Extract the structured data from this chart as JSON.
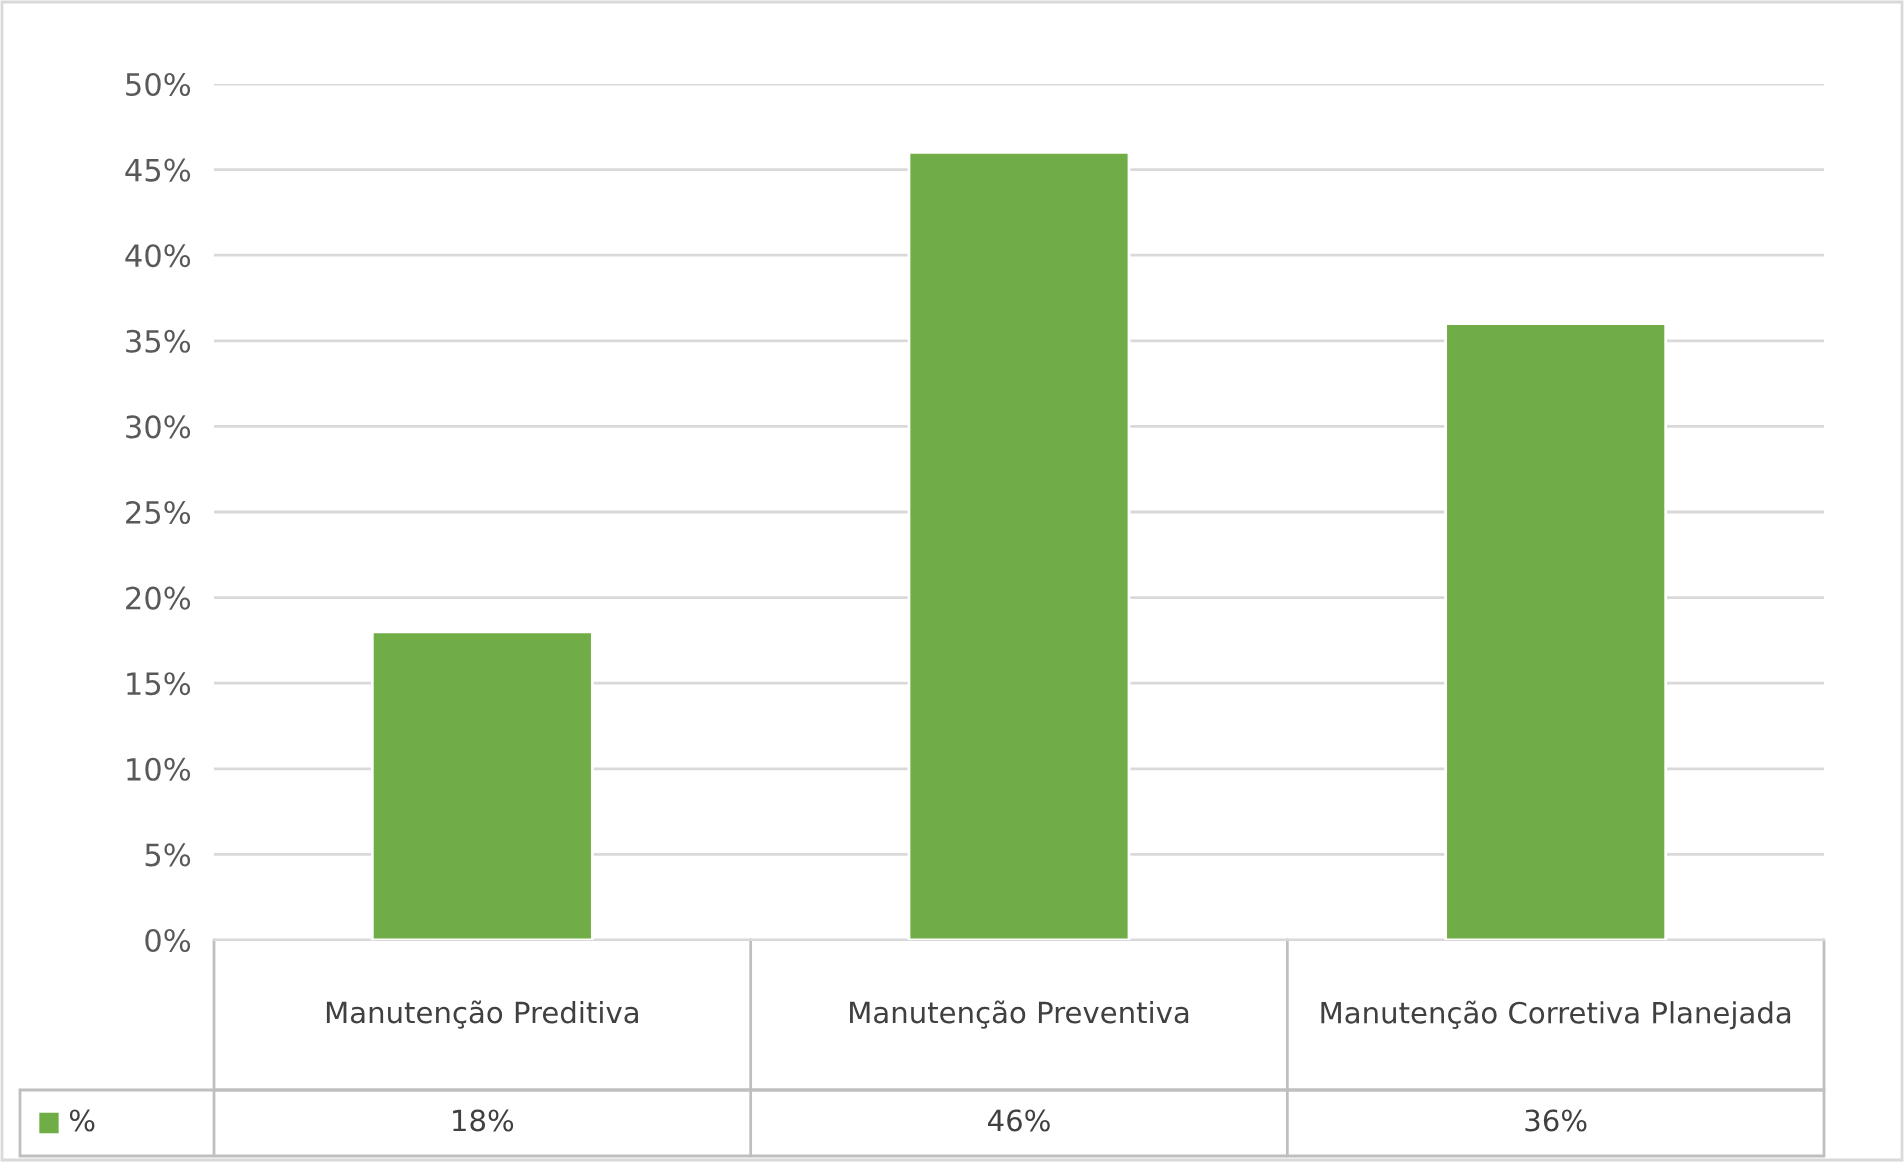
{
  "chart_data": {
    "type": "bar",
    "categories": [
      "Manutenção Preditiva",
      "Manutenção Preventiva",
      "Manutenção Corretiva Planejada"
    ],
    "series": [
      {
        "name": "%",
        "color": "#70ad47",
        "values": [
          18,
          46,
          36
        ],
        "value_labels": [
          "18%",
          "46%",
          "36%"
        ]
      }
    ],
    "ylim": [
      0,
      50
    ],
    "yticks": [
      {
        "value": 0,
        "label": "0%"
      },
      {
        "value": 5,
        "label": "5%"
      },
      {
        "value": 10,
        "label": "10%"
      },
      {
        "value": 15,
        "label": "15%"
      },
      {
        "value": 20,
        "label": "20%"
      },
      {
        "value": 25,
        "label": "25%"
      },
      {
        "value": 30,
        "label": "30%"
      },
      {
        "value": 35,
        "label": "35%"
      },
      {
        "value": 40,
        "label": "40%"
      },
      {
        "value": 45,
        "label": "45%"
      },
      {
        "value": 50,
        "label": "50%"
      }
    ],
    "grid": "y",
    "legend": "bottom"
  }
}
